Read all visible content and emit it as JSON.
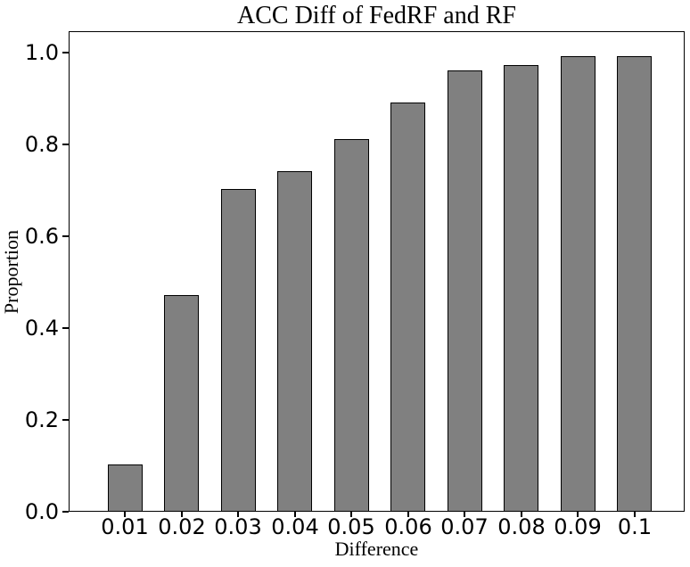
{
  "chart_data": {
    "type": "bar",
    "title": "ACC Diff of FedRF and RF",
    "xlabel": "Difference",
    "ylabel": "Proportion",
    "categories": [
      "0.01",
      "0.02",
      "0.03",
      "0.04",
      "0.05",
      "0.06",
      "0.07",
      "0.08",
      "0.09",
      "0.1"
    ],
    "values": [
      0.1,
      0.47,
      0.7,
      0.74,
      0.81,
      0.89,
      0.96,
      0.97,
      0.99,
      0.99
    ],
    "ytick_labels": [
      "0.0",
      "0.2",
      "0.4",
      "0.6",
      "0.8",
      "1.0"
    ],
    "ylim": [
      0.0,
      1.05
    ],
    "grid": false,
    "legend_position": "none",
    "colors": {
      "bar_fill": "#808080",
      "bar_edge": "#000000",
      "axis": "#000000",
      "text": "#000000",
      "background": "#ffffff"
    }
  }
}
